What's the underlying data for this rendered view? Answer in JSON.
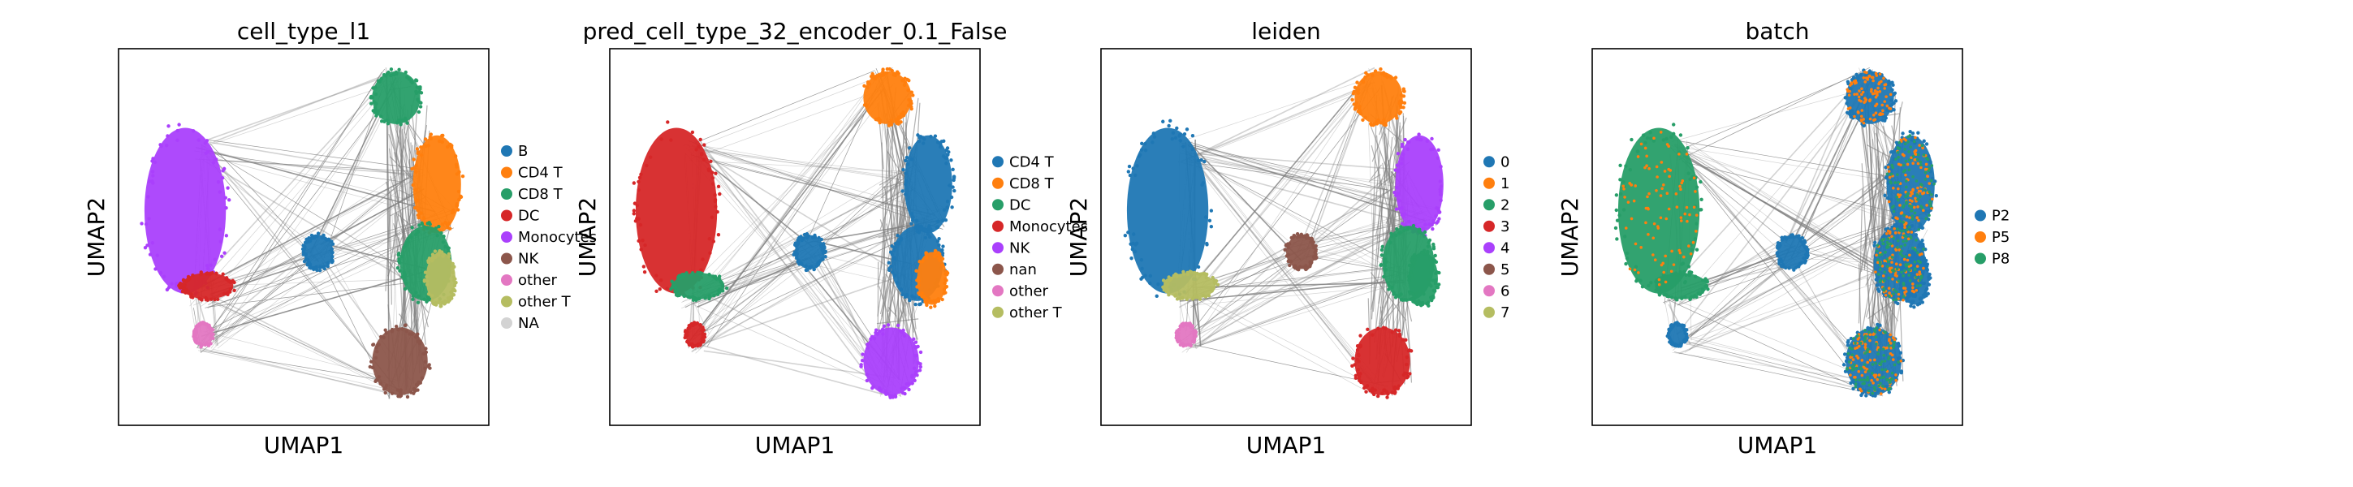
{
  "chart_data": [
    {
      "type": "scatter",
      "title": "cell_type_l1",
      "xlabel": "UMAP1",
      "ylabel": "UMAP2",
      "legend_position": "right",
      "grid": false,
      "ticks": false,
      "legend": [
        {
          "label": "B",
          "color": "#1f77b4"
        },
        {
          "label": "CD4 T",
          "color": "#ff7f0e"
        },
        {
          "label": "CD8 T",
          "color": "#279e68"
        },
        {
          "label": "DC",
          "color": "#d62728"
        },
        {
          "label": "Monocytes",
          "color": "#aa40fc"
        },
        {
          "label": "NK",
          "color": "#8c564b"
        },
        {
          "label": "other",
          "color": "#e377c2"
        },
        {
          "label": "other T",
          "color": "#b5bd61"
        },
        {
          "label": "NA",
          "color": "#d3d3d3"
        }
      ],
      "regions": {
        "left_cluster": "Monocytes",
        "left_bottom_strip": "DC",
        "left_bottom_tip": "other",
        "center_blob": "B",
        "right_top": "CD8 T",
        "right_upper": "CD4 T",
        "right_middle": "CD8 T",
        "right_lower": "other T",
        "right_bottom": "NK"
      }
    },
    {
      "type": "scatter",
      "title": "pred_cell_type_32_encoder_0.1_False",
      "xlabel": "UMAP1",
      "ylabel": "UMAP2",
      "legend_position": "right",
      "grid": false,
      "ticks": false,
      "legend": [
        {
          "label": "CD4 T",
          "color": "#1f77b4"
        },
        {
          "label": "CD8 T",
          "color": "#ff7f0e"
        },
        {
          "label": "DC",
          "color": "#279e68"
        },
        {
          "label": "Monocytes",
          "color": "#d62728"
        },
        {
          "label": "NK",
          "color": "#aa40fc"
        },
        {
          "label": "nan",
          "color": "#8c564b"
        },
        {
          "label": "other",
          "color": "#e377c2"
        },
        {
          "label": "other T",
          "color": "#b5bd61"
        }
      ],
      "regions": {
        "left_cluster": "Monocytes",
        "left_bottom_strip": "DC",
        "left_bottom_tip": "Monocytes",
        "center_blob": "CD4 T",
        "right_top": "CD8 T",
        "right_upper": "CD4 T",
        "right_middle": "CD4 T",
        "right_lower": "CD8 T",
        "right_bottom": "NK"
      }
    },
    {
      "type": "scatter",
      "title": "leiden",
      "xlabel": "UMAP1",
      "ylabel": "UMAP2",
      "legend_position": "right",
      "grid": false,
      "ticks": false,
      "legend": [
        {
          "label": "0",
          "color": "#1f77b4"
        },
        {
          "label": "1",
          "color": "#ff7f0e"
        },
        {
          "label": "2",
          "color": "#279e68"
        },
        {
          "label": "3",
          "color": "#d62728"
        },
        {
          "label": "4",
          "color": "#aa40fc"
        },
        {
          "label": "5",
          "color": "#8c564b"
        },
        {
          "label": "6",
          "color": "#e377c2"
        },
        {
          "label": "7",
          "color": "#b5bd61"
        }
      ],
      "regions": {
        "left_cluster": "0",
        "left_bottom_strip": "7",
        "left_bottom_tip": "6",
        "center_blob": "5",
        "right_top": "1",
        "right_upper": "4",
        "right_middle": "2",
        "right_lower": "2",
        "right_bottom": "3"
      }
    },
    {
      "type": "scatter",
      "title": "batch",
      "xlabel": "UMAP1",
      "ylabel": "UMAP2",
      "legend_position": "right",
      "grid": false,
      "ticks": false,
      "legend": [
        {
          "label": "P2",
          "color": "#1f77b4"
        },
        {
          "label": "P5",
          "color": "#ff7f0e"
        },
        {
          "label": "P8",
          "color": "#279e68"
        }
      ],
      "regions": {
        "left_cluster": "P8",
        "left_bottom_strip": "P8",
        "left_bottom_tip": "P2",
        "center_blob": "P2",
        "right_top": "P2",
        "right_upper": "P2",
        "right_middle": "P2",
        "right_lower": "P2",
        "right_bottom": "P2"
      },
      "speckle": [
        "P5",
        "P8"
      ]
    }
  ],
  "colors": {
    "edge": "#808080",
    "frame": "#000000",
    "background": "#ffffff"
  }
}
